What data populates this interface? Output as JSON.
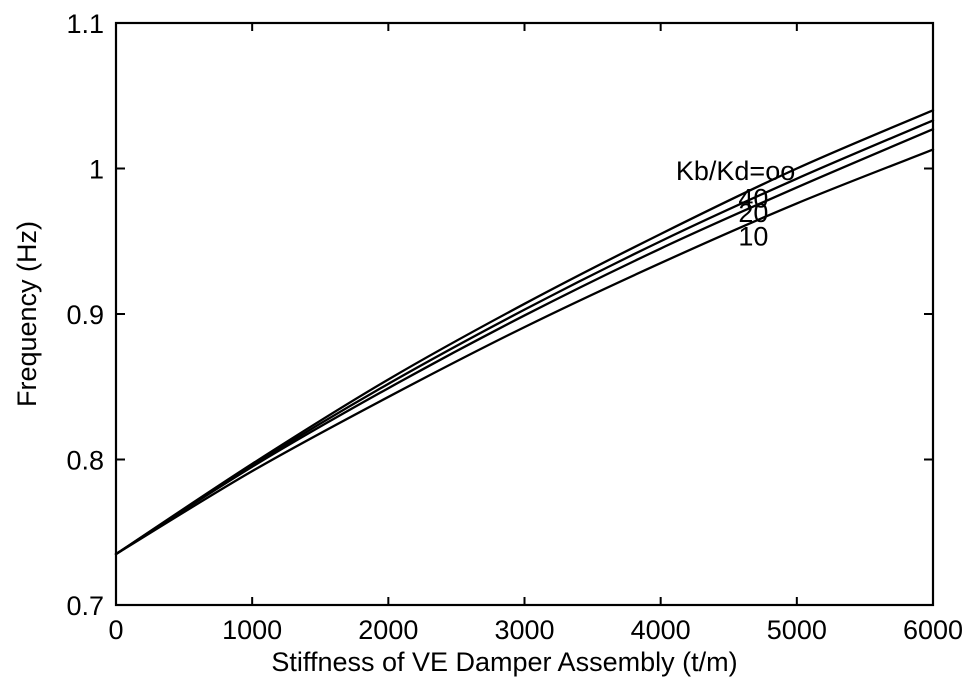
{
  "chart_data": {
    "type": "line",
    "xlabel": "Stiffness of VE Damper Assembly (t/m)",
    "ylabel": "Frequency (Hz)",
    "xlim": [
      0,
      6000
    ],
    "ylim": [
      0.7,
      1.1
    ],
    "xticks": [
      0,
      1000,
      2000,
      3000,
      4000,
      5000,
      6000
    ],
    "yticks": [
      0.7,
      0.8,
      0.9,
      1,
      1.1
    ],
    "xtick_labels": [
      "0",
      "1000",
      "2000",
      "3000",
      "4000",
      "5000",
      "6000"
    ],
    "ytick_labels": [
      "0.7",
      "0.8",
      "0.9",
      "1",
      "1.1"
    ],
    "grid": false,
    "legend": "none",
    "series": [
      {
        "name": "Kb/Kd=oo",
        "x": [
          0,
          1000,
          2000,
          3000,
          4000,
          5000,
          6000
        ],
        "y": [
          0.735,
          0.797,
          0.855,
          0.907,
          0.955,
          1.0,
          1.04
        ]
      },
      {
        "name": "40",
        "x": [
          0,
          1000,
          2000,
          3000,
          4000,
          5000,
          6000
        ],
        "y": [
          0.735,
          0.796,
          0.852,
          0.903,
          0.95,
          0.993,
          1.033
        ]
      },
      {
        "name": "20",
        "x": [
          0,
          1000,
          2000,
          3000,
          4000,
          5000,
          6000
        ],
        "y": [
          0.735,
          0.795,
          0.849,
          0.899,
          0.945,
          0.987,
          1.027
        ]
      },
      {
        "name": "10",
        "x": [
          0,
          1000,
          2000,
          3000,
          4000,
          5000,
          6000
        ],
        "y": [
          0.735,
          0.792,
          0.843,
          0.891,
          0.935,
          0.976,
          1.013
        ]
      }
    ]
  }
}
